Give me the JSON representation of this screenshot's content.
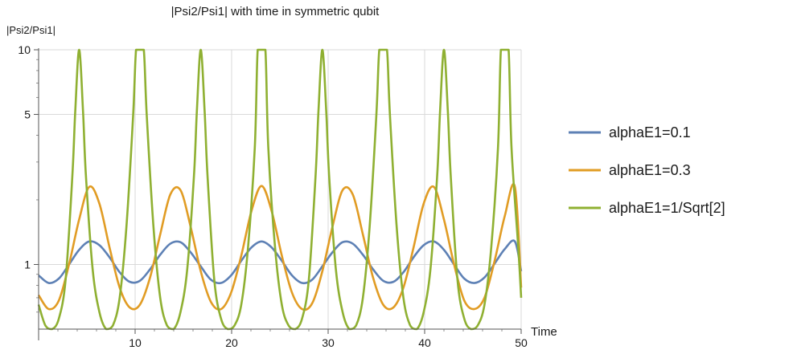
{
  "chart_data": {
    "type": "line",
    "title": "|Psi2/Psi1| with time in symmetric qubit",
    "xlabel": "Time",
    "ylabel": "|Psi2/Psi1|",
    "xlim": [
      0,
      50
    ],
    "ylim": [
      0.5,
      10
    ],
    "yscale": "log",
    "grid": true,
    "legend_position": "right",
    "x_ticks": [
      10,
      20,
      30,
      40,
      50
    ],
    "y_ticks": [
      1,
      5,
      10
    ],
    "series": [
      {
        "name": "alphaE1=0.1",
        "color": "#5e81b5",
        "x": [
          0,
          1.05,
          2.1,
          3.15,
          4.2,
          5.25,
          6.3,
          7.35,
          8.4,
          9.45,
          10.5,
          11.55,
          12.6,
          13.65,
          14.7,
          15.75,
          16.8,
          17.85,
          18.9,
          19.95,
          21,
          22.05,
          23.1,
          24.15,
          25.2,
          26.25,
          27.3,
          28.35,
          29.4,
          30.45,
          31.5,
          32.55,
          33.6,
          34.65,
          35.7,
          36.75,
          37.8,
          38.85,
          39.9,
          40.95,
          42,
          43.05,
          44.1,
          45.15,
          46.2,
          47.25,
          48.3,
          49.35,
          50
        ],
        "y": [
          0.89,
          0.82,
          0.86,
          1.0,
          1.17,
          1.28,
          1.23,
          1.08,
          0.92,
          0.83,
          0.84,
          0.95,
          1.11,
          1.25,
          1.27,
          1.14,
          0.98,
          0.85,
          0.82,
          0.89,
          1.04,
          1.2,
          1.28,
          1.2,
          1.04,
          0.89,
          0.82,
          0.85,
          0.98,
          1.14,
          1.27,
          1.25,
          1.11,
          0.95,
          0.84,
          0.83,
          0.92,
          1.08,
          1.23,
          1.28,
          1.17,
          1.0,
          0.86,
          0.82,
          0.87,
          1.01,
          1.18,
          1.28,
          0.93
        ]
      },
      {
        "name": "alphaE1=0.3",
        "color": "#e19c24",
        "x": [
          0,
          1.05,
          2.1,
          3.15,
          4.2,
          5.25,
          6.3,
          7.35,
          8.4,
          9.45,
          10.5,
          11.55,
          12.6,
          13.65,
          14.7,
          15.75,
          16.8,
          17.85,
          18.9,
          19.95,
          21,
          22.05,
          23.1,
          24.15,
          25.2,
          26.25,
          27.3,
          28.35,
          29.4,
          30.45,
          31.5,
          32.55,
          33.6,
          34.65,
          35.7,
          36.75,
          37.8,
          38.85,
          39.9,
          40.95,
          42,
          43.05,
          44.1,
          45.15,
          46.2,
          47.25,
          48.3,
          49.35,
          50
        ],
        "y": [
          0.72,
          0.62,
          0.68,
          1.0,
          1.62,
          2.3,
          1.92,
          1.2,
          0.78,
          0.63,
          0.65,
          0.87,
          1.38,
          2.12,
          2.22,
          1.5,
          0.93,
          0.67,
          0.62,
          0.74,
          1.1,
          1.77,
          2.32,
          1.77,
          1.1,
          0.74,
          0.62,
          0.66,
          0.93,
          1.5,
          2.22,
          2.12,
          1.38,
          0.87,
          0.65,
          0.63,
          0.78,
          1.2,
          1.92,
          2.3,
          1.62,
          1.0,
          0.68,
          0.62,
          0.7,
          1.04,
          1.68,
          2.3,
          0.78
        ]
      },
      {
        "name": "alphaE1=1/Sqrt[2]",
        "color": "#8fb032",
        "x": [
          0,
          0.7,
          1.4,
          2.1,
          2.8,
          3.5,
          3.8,
          4.2,
          4.6,
          4.9,
          5.6,
          6.3,
          7.0,
          7.7,
          8.4,
          9.1,
          9.8,
          10.1,
          10.5,
          10.9,
          11.2,
          11.9,
          12.6,
          13.3,
          14.0,
          14.7,
          15.4,
          16.1,
          16.4,
          16.8,
          17.2,
          17.5,
          18.2,
          18.9,
          19.6,
          20.3,
          21.0,
          21.7,
          22.4,
          22.7,
          23.1,
          23.5,
          23.8,
          24.5,
          25.2,
          25.9,
          26.6,
          27.3,
          28.0,
          28.7,
          29.0,
          29.4,
          29.8,
          30.1,
          30.8,
          31.5,
          32.2,
          32.9,
          33.6,
          34.3,
          35.0,
          35.3,
          35.7,
          36.1,
          36.4,
          37.1,
          37.8,
          38.5,
          39.2,
          39.9,
          40.6,
          41.3,
          41.6,
          42.0,
          42.4,
          42.7,
          43.4,
          44.1,
          44.8,
          45.5,
          46.2,
          46.9,
          47.6,
          47.9,
          48.3,
          48.7,
          49.0,
          49.7,
          50
        ],
        "y": [
          0.65,
          0.52,
          0.5,
          0.56,
          0.85,
          2.6,
          5.2,
          10,
          5.2,
          2.6,
          0.95,
          0.6,
          0.5,
          0.52,
          0.7,
          1.5,
          5.0,
          10,
          10,
          10,
          5.0,
          1.5,
          0.7,
          0.52,
          0.5,
          0.6,
          0.95,
          2.6,
          5.2,
          10,
          5.2,
          2.6,
          0.85,
          0.56,
          0.5,
          0.52,
          0.65,
          1.2,
          3.5,
          10,
          10,
          10,
          3.5,
          1.2,
          0.65,
          0.52,
          0.5,
          0.56,
          0.85,
          2.6,
          5.2,
          10,
          5.2,
          2.6,
          0.95,
          0.6,
          0.5,
          0.52,
          0.7,
          1.5,
          5.0,
          10,
          10,
          10,
          5.0,
          1.5,
          0.7,
          0.52,
          0.5,
          0.6,
          0.95,
          2.6,
          5.2,
          10,
          5.2,
          2.6,
          0.85,
          0.56,
          0.5,
          0.52,
          0.65,
          1.2,
          3.5,
          10,
          10,
          10,
          3.5,
          1.2,
          0.7
        ]
      }
    ]
  }
}
